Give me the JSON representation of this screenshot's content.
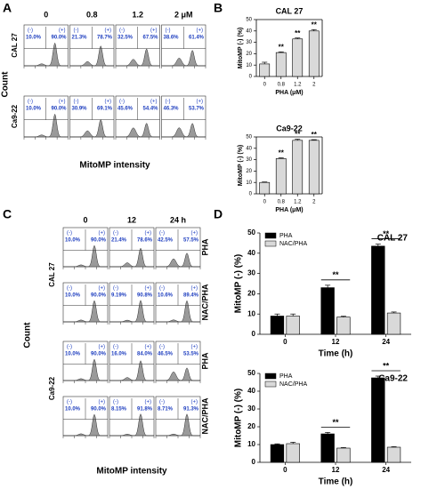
{
  "panel_labels": [
    "A",
    "B",
    "C",
    "D"
  ],
  "flow": [
    {
      "columns": [
        "0",
        "0.8",
        "1.2",
        "2 μM"
      ],
      "neg": "(-)",
      "pos": "(+)",
      "ylabel": "Count",
      "xlabel": "MitoMP intensity",
      "groups": [
        {
          "name": "CAL 27",
          "rows": [
            {
              "cells": [
                [
                  "10.0%",
                  "90.0%"
                ],
                [
                  "21.3%",
                  "78.7%"
                ],
                [
                  "32.5%",
                  "67.5%"
                ],
                [
                  "38.6%",
                  "61.4%"
                ]
              ]
            }
          ]
        },
        {
          "name": "Ca9-22",
          "rows": [
            {
              "cells": [
                [
                  "10.0%",
                  "90.0%"
                ],
                [
                  "30.9%",
                  "69.1%"
                ],
                [
                  "45.6%",
                  "54.4%"
                ],
                [
                  "46.3%",
                  "53.7%"
                ]
              ]
            }
          ]
        }
      ]
    },
    {
      "columns": [
        "0",
        "12",
        "24 h"
      ],
      "neg": "(-)",
      "pos": "(+)",
      "ylabel": "Count",
      "xlabel": "MitoMP intensity",
      "groups": [
        {
          "name": "CAL 27",
          "rows": [
            {
              "treatment": "PHA",
              "cells": [
                [
                  "10.0%",
                  "90.0%"
                ],
                [
                  "21.4%",
                  "78.6%"
                ],
                [
                  "42.5%",
                  "57.5%"
                ]
              ]
            },
            {
              "treatment": "NAC/PHA",
              "cells": [
                [
                  "10.0%",
                  "90.0%"
                ],
                [
                  "9.19%",
                  "90.8%"
                ],
                [
                  "10.6%",
                  "89.4%"
                ]
              ]
            }
          ]
        },
        {
          "name": "Ca9-22",
          "rows": [
            {
              "treatment": "PHA",
              "cells": [
                [
                  "10.0%",
                  "90.0%"
                ],
                [
                  "16.0%",
                  "84.0%"
                ],
                [
                  "46.5%",
                  "53.5%"
                ]
              ]
            },
            {
              "treatment": "NAC/PHA",
              "cells": [
                [
                  "10.0%",
                  "90.0%"
                ],
                [
                  "8.15%",
                  "91.8%"
                ],
                [
                  "8.71%",
                  "91.3%"
                ]
              ]
            }
          ]
        }
      ]
    }
  ],
  "chart_data": [
    {
      "type": "bar",
      "title": "CAL 27",
      "xlabel": "PHA (μM)",
      "ylabel": "MitoMP (-) (%)",
      "categories": [
        "0",
        "0.8",
        "1.2",
        "2"
      ],
      "values": [
        11,
        21,
        33,
        40
      ],
      "errors": [
        1.5,
        0.6,
        0.8,
        1.2
      ],
      "annotations": [
        null,
        "**",
        "**",
        "**"
      ],
      "color": "#d9d9d9",
      "ylim": [
        0,
        50
      ],
      "yticks": [
        0,
        10,
        20,
        30,
        40,
        50
      ]
    },
    {
      "type": "bar",
      "title": "Ca9-22",
      "xlabel": "PHA (μM)",
      "ylabel": "MitoMP (-) (%)",
      "categories": [
        "0",
        "0.8",
        "1.2",
        "2"
      ],
      "values": [
        10,
        31,
        47,
        47
      ],
      "errors": [
        0.4,
        0.6,
        1,
        0.6
      ],
      "annotations": [
        null,
        "**",
        "**",
        "**"
      ],
      "color": "#d9d9d9",
      "ylim": [
        0,
        50
      ],
      "yticks": [
        0,
        10,
        20,
        30,
        40,
        50
      ]
    },
    {
      "type": "grouped_bar",
      "title": "CAL 27",
      "xlabel": "Time (h)",
      "ylabel": "MitoMP (-) (%)",
      "categories": [
        "0",
        "12",
        "24"
      ],
      "legend": "upper left",
      "series": [
        {
          "name": "PHA",
          "color": "#000000",
          "values": [
            9,
            23,
            43.5
          ],
          "errors": [
            1,
            1.2,
            1
          ]
        },
        {
          "name": "NAC/PHA",
          "color": "#d9d9d9",
          "values": [
            9,
            8.5,
            10.5
          ],
          "errors": [
            1,
            0.4,
            0.5
          ]
        }
      ],
      "annotations": [
        null,
        "**",
        "**"
      ],
      "ylim": [
        0,
        50
      ],
      "yticks": [
        0,
        10,
        20,
        30,
        40,
        50
      ]
    },
    {
      "type": "grouped_bar",
      "title": "Ca9-22",
      "xlabel": "Time (h)",
      "ylabel": "MitoMP (-) (%)",
      "categories": [
        "0",
        "12",
        "24"
      ],
      "legend": "upper left",
      "series": [
        {
          "name": "PHA",
          "color": "#000000",
          "values": [
            10,
            16,
            47.5
          ],
          "errors": [
            0.4,
            0.8,
            1
          ]
        },
        {
          "name": "NAC/PHA",
          "color": "#d9d9d9",
          "values": [
            10.5,
            8,
            8.5
          ],
          "errors": [
            0.8,
            0.3,
            0.3
          ]
        }
      ],
      "annotations": [
        null,
        "**",
        "**"
      ],
      "ylim": [
        0,
        50
      ],
      "yticks": [
        0,
        10,
        20,
        30,
        40,
        50
      ]
    }
  ]
}
